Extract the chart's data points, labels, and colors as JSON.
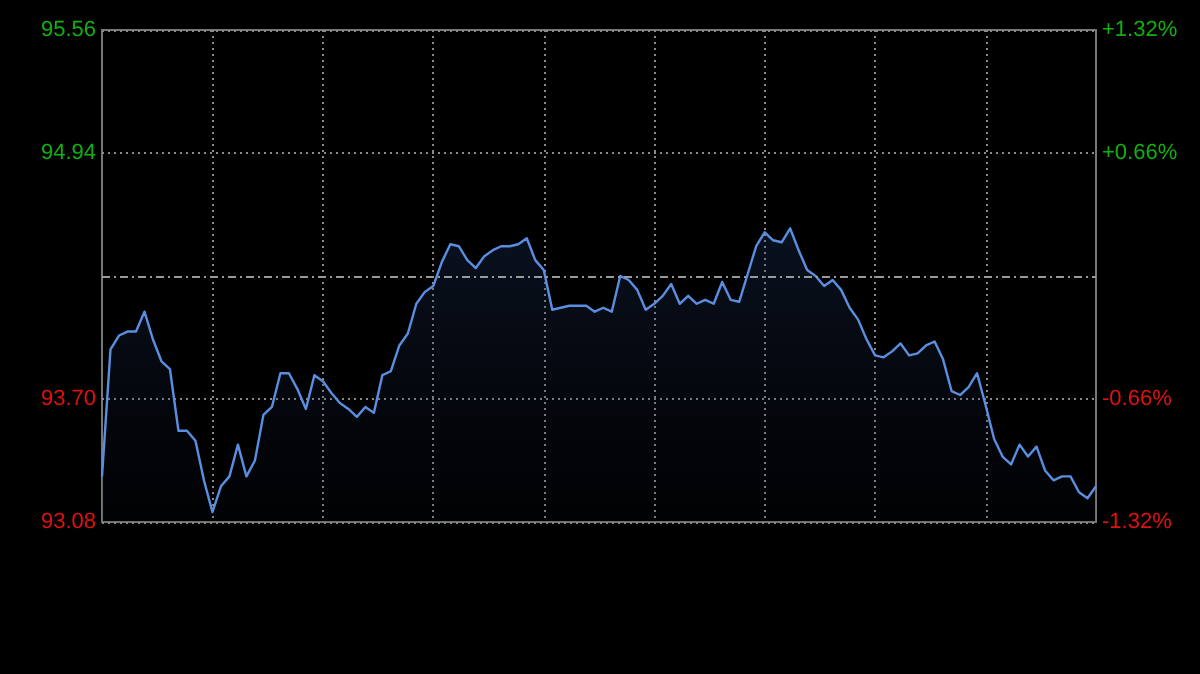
{
  "chart_data": {
    "type": "area",
    "categories": [
      null,
      null,
      null,
      null,
      null,
      null,
      null,
      null,
      null,
      null,
      null,
      null,
      null,
      null,
      null,
      null,
      null,
      null,
      null,
      null,
      null,
      null,
      null,
      null,
      null,
      null,
      null,
      null,
      null,
      null,
      null,
      null,
      null,
      null,
      null,
      null,
      null,
      null,
      null,
      null,
      null,
      null,
      null,
      null,
      null,
      null,
      null,
      null,
      null,
      null,
      null,
      null,
      null,
      null,
      null,
      null,
      null,
      null,
      null,
      null,
      null,
      null,
      null,
      null,
      null,
      null,
      null,
      null,
      null,
      null,
      null,
      null,
      null,
      null,
      null,
      null,
      null,
      null,
      null,
      null,
      null,
      null,
      null,
      null,
      null,
      null,
      null,
      null,
      null,
      null,
      null,
      null,
      null,
      null,
      null,
      null,
      null,
      null,
      null,
      null,
      null,
      null,
      null,
      null,
      null,
      null,
      null,
      null,
      null,
      null,
      null,
      null,
      null,
      null,
      null,
      null,
      null,
      null
    ],
    "series": [
      {
        "color": "#5a8ee0",
        "values": [
          93.31,
          93.95,
          94.02,
          94.04,
          94.04,
          94.14,
          94.0,
          93.89,
          93.85,
          93.54,
          93.54,
          93.49,
          93.29,
          93.13,
          93.26,
          93.31,
          93.47,
          93.31,
          93.39,
          93.62,
          93.66,
          93.83,
          93.83,
          93.75,
          93.65,
          93.82,
          93.79,
          93.73,
          93.68,
          93.65,
          93.61,
          93.66,
          93.63,
          93.82,
          93.84,
          93.97,
          94.03,
          94.18,
          94.24,
          94.27,
          94.39,
          94.48,
          94.47,
          94.4,
          94.36,
          94.42,
          94.45,
          94.47,
          94.47,
          94.48,
          94.51,
          94.4,
          94.35,
          94.15,
          94.16,
          94.17,
          94.17,
          94.17,
          94.14,
          94.16,
          94.14,
          94.32,
          94.3,
          94.25,
          94.15,
          94.18,
          94.22,
          94.28,
          94.18,
          94.22,
          94.18,
          94.2,
          94.18,
          94.29,
          94.2,
          94.19,
          94.33,
          94.47,
          94.54,
          94.5,
          94.49,
          94.56,
          94.45,
          94.35,
          94.32,
          94.27,
          94.3,
          94.25,
          94.16,
          94.1,
          94.0,
          93.92,
          93.91,
          93.94,
          93.98,
          93.92,
          93.93,
          93.97,
          93.99,
          93.9,
          93.74,
          93.72,
          93.76,
          93.83,
          93.67,
          93.5,
          93.41,
          93.37,
          93.47,
          93.41,
          93.46,
          93.34,
          93.29,
          93.31,
          93.31,
          93.23,
          93.2,
          93.26
        ]
      }
    ],
    "ylim": [
      93.08,
      95.56
    ],
    "yticks": [
      {
        "value": 93.08,
        "label": "93.08"
      },
      {
        "value": 93.7,
        "label": "93.70"
      },
      {
        "value": 94.32,
        "label": null
      },
      {
        "value": 94.94,
        "label": "94.94"
      },
      {
        "value": 95.56,
        "label": "95.56"
      }
    ],
    "y2lim": [
      -1.32,
      1.32
    ],
    "y2ticks": [
      {
        "value": -1.32,
        "label": "-1.32%"
      },
      {
        "value": -0.66,
        "label": "-0.66%"
      },
      {
        "value": 0,
        "label": null
      },
      {
        "value": 0.66,
        "label": "+0.66%"
      },
      {
        "value": 1.32,
        "label": "+1.32%"
      }
    ],
    "ref_lines": [
      {
        "axis": "y",
        "value": 94.32,
        "color": "#9a9a9a",
        "line_style": "dashed"
      }
    ],
    "grid": true,
    "line_style": "solid"
  }
}
